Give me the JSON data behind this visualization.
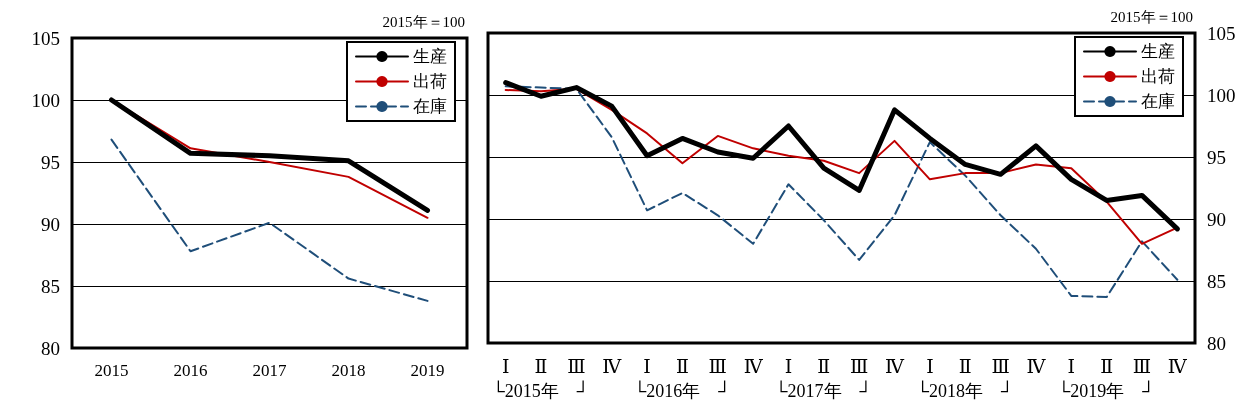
{
  "chart_data": [
    {
      "type": "line",
      "categories": [
        "2015",
        "2016",
        "2017",
        "2018",
        "2019"
      ],
      "ylim": [
        80,
        105
      ],
      "yticks": [
        80,
        85,
        90,
        95,
        100,
        105
      ],
      "grid": "y",
      "legend": "top right",
      "annotations": [
        "2015年＝100"
      ],
      "series": [
        {
          "name": "生産",
          "color": "#000000",
          "line_style": "solid",
          "values": [
            100,
            95.7,
            95.5,
            95.1,
            91.1
          ]
        },
        {
          "name": "出荷",
          "color": "#c00000",
          "line_style": "solid",
          "values": [
            100,
            96.1,
            95.0,
            93.8,
            90.5
          ]
        },
        {
          "name": "在庫",
          "color": "#1f4e79",
          "line_style": "dashed",
          "values": [
            96.8,
            87.8,
            90.1,
            85.6,
            83.8
          ]
        }
      ]
    },
    {
      "type": "line",
      "categories": [
        "Ⅰ",
        "Ⅱ",
        "Ⅲ",
        "Ⅳ",
        "Ⅰ",
        "Ⅱ",
        "Ⅲ",
        "Ⅳ",
        "Ⅰ",
        "Ⅱ",
        "Ⅲ",
        "Ⅳ",
        "Ⅰ",
        "Ⅱ",
        "Ⅲ",
        "Ⅳ",
        "Ⅰ",
        "Ⅱ",
        "Ⅲ",
        "Ⅳ"
      ],
      "ylim": [
        80,
        105
      ],
      "yticks": [
        80,
        85,
        90,
        95,
        100,
        105
      ],
      "grid": "y",
      "legend": "top right",
      "annotations": [
        "2015年＝100",
        "└2015年　┘",
        "└2016年　┘",
        "└2017年　┘",
        "└2018年　┘",
        "└2019年　┘"
      ],
      "series": [
        {
          "name": "生産",
          "color": "#000000",
          "line_style": "solid",
          "values": [
            101.0,
            99.9,
            100.6,
            99.1,
            95.1,
            96.5,
            95.4,
            94.9,
            97.5,
            94.1,
            92.3,
            98.8,
            96.5,
            94.4,
            93.6,
            95.9,
            93.2,
            91.5,
            91.9,
            89.2
          ]
        },
        {
          "name": "出荷",
          "color": "#c00000",
          "line_style": "solid",
          "values": [
            100.4,
            100.3,
            100.5,
            98.8,
            96.9,
            94.5,
            96.7,
            95.7,
            95.1,
            94.7,
            93.7,
            96.3,
            93.2,
            93.7,
            93.7,
            94.4,
            94.1,
            91.4,
            88.0,
            89.3
          ]
        },
        {
          "name": "在庫",
          "color": "#1f4e79",
          "line_style": "dashed",
          "values": [
            100.7,
            100.6,
            100.5,
            96.6,
            90.7,
            92.1,
            90.3,
            88.0,
            92.8,
            89.9,
            86.7,
            90.3,
            96.2,
            93.5,
            90.3,
            87.6,
            83.8,
            83.7,
            88.2,
            85.1
          ]
        }
      ]
    }
  ]
}
